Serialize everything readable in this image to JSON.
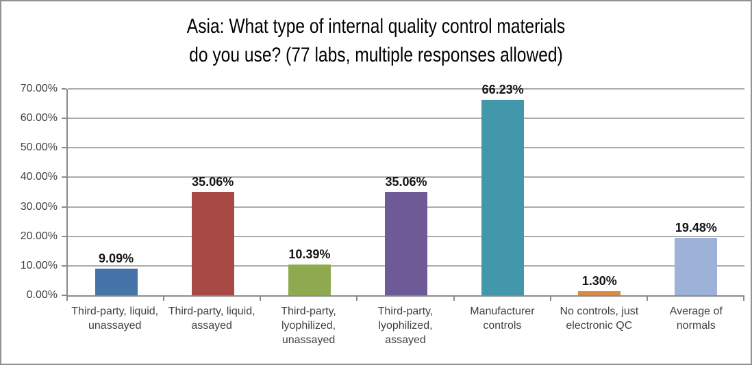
{
  "frame": {
    "background": "#ffffff",
    "border_color": "#919191"
  },
  "title": {
    "line1": "Asia: What type of internal quality control materials",
    "line2": "do you use? (77 labs, multiple responses allowed)"
  },
  "chart_data": {
    "type": "bar",
    "title": "Asia: What type of internal quality control materials do you use? (77 labs, multiple responses allowed)",
    "categories": [
      "Third-party, liquid, unassayed",
      "Third-party, liquid, assayed",
      "Third-party, lyophilized, unassayed",
      "Third-party, lyophilized, assayed",
      "Manufacturer controls",
      "No controls, just electronic QC",
      "Average of normals"
    ],
    "values": [
      9.09,
      35.06,
      10.39,
      35.06,
      66.23,
      1.3,
      19.48
    ],
    "data_labels": [
      "9.09%",
      "35.06%",
      "10.39%",
      "35.06%",
      "66.23%",
      "1.30%",
      "19.48%"
    ],
    "bar_colors": [
      "#4674a9",
      "#a94945",
      "#8ea94e",
      "#6e5a97",
      "#4397ab",
      "#d98b41",
      "#9db2d8"
    ],
    "xlabel": "",
    "ylabel": "",
    "ylim": [
      0,
      70
    ],
    "ytick_labels": [
      "0.00%",
      "10.00%",
      "20.00%",
      "30.00%",
      "40.00%",
      "50.00%",
      "60.00%",
      "70.00%"
    ],
    "grid": true,
    "legend": "none",
    "axis_color": "#8a8a8a",
    "gridline_color": "#ababab",
    "label_color": "#141414"
  }
}
